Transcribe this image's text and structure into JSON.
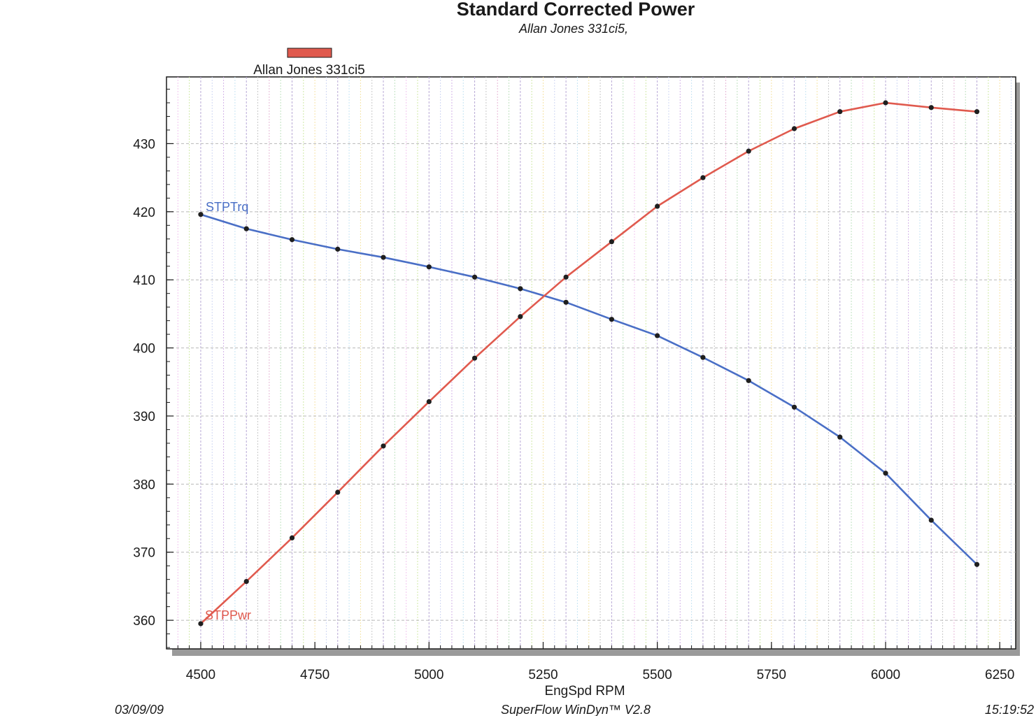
{
  "chart_data": {
    "type": "line",
    "title": "Standard Corrected Power",
    "subtitle": "Allan Jones 331ci5,",
    "legend": {
      "entries": [
        {
          "label": "Allan Jones 331ci5",
          "color": "#e05a4e"
        }
      ],
      "placement": "top-left"
    },
    "xlabel": "EngSpd  RPM",
    "ylabel": "",
    "xlim": [
      4425,
      6285
    ],
    "ylim": [
      355.8,
      439.8
    ],
    "xticks": [
      4500,
      4750,
      5000,
      5250,
      5500,
      5750,
      6000,
      6250
    ],
    "yticks": [
      360,
      370,
      380,
      390,
      400,
      410,
      420,
      430
    ],
    "grid": true,
    "x": [
      4500,
      4600,
      4700,
      4800,
      4900,
      5000,
      5100,
      5200,
      5300,
      5400,
      5500,
      5600,
      5700,
      5800,
      5900,
      6000,
      6100,
      6200
    ],
    "series": [
      {
        "name": "STPTrq",
        "color": "#4a6fc6",
        "values": [
          419.6,
          417.5,
          415.9,
          414.5,
          413.3,
          411.9,
          410.4,
          408.7,
          406.7,
          404.2,
          401.8,
          398.6,
          395.2,
          391.3,
          386.9,
          381.6,
          374.7,
          368.2
        ]
      },
      {
        "name": "STPPwr",
        "color": "#e05a4e",
        "values": [
          359.5,
          365.7,
          372.1,
          378.8,
          385.6,
          392.1,
          398.5,
          404.6,
          410.4,
          415.6,
          420.8,
          425.0,
          428.9,
          432.2,
          434.7,
          436.0,
          435.3,
          434.7
        ]
      }
    ]
  },
  "footer": {
    "date": "03/09/09",
    "software": "SuperFlow WinDyn™ V2.8",
    "time": "15:19:52"
  }
}
